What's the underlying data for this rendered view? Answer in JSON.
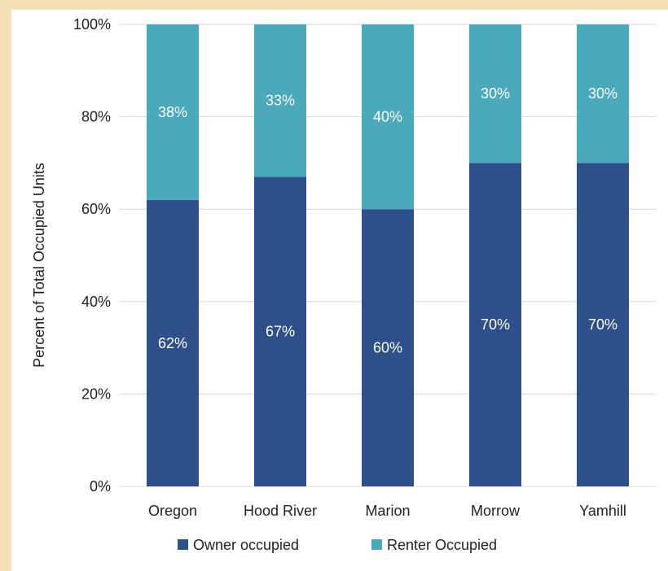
{
  "chart_data": {
    "type": "bar",
    "stacked": true,
    "categories": [
      "Oregon",
      "Hood River",
      "Marion",
      "Morrow",
      "Yamhill"
    ],
    "series": [
      {
        "name": "Owner occupied",
        "values": [
          62,
          67,
          60,
          70,
          70
        ],
        "labels": [
          "62%",
          "67%",
          "60%",
          "70%",
          "70%"
        ],
        "color": "#2d4f8a"
      },
      {
        "name": "Renter Occupied",
        "values": [
          38,
          33,
          40,
          30,
          30
        ],
        "labels": [
          "38%",
          "33%",
          "40%",
          "30%",
          "30%"
        ],
        "color": "#4aaabb"
      }
    ],
    "title": "",
    "xlabel": "",
    "ylabel": "Percent of Total Occupied Units",
    "ylim": [
      0,
      100
    ],
    "yticks": [
      "0%",
      "20%",
      "40%",
      "60%",
      "80%",
      "100%"
    ],
    "grid": true,
    "legend_position": "bottom"
  },
  "colors": {
    "page_background": "#f3dfb5",
    "panel_background": "#ffffff",
    "gridline": "#d9d9d9"
  }
}
